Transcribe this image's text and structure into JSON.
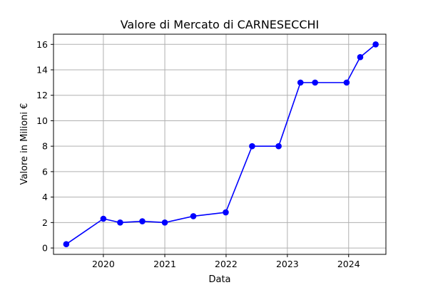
{
  "chart_data": {
    "type": "line",
    "title": "Valore di Mercato di CARNESECCHI",
    "xlabel": "Data",
    "ylabel": "Valore in Milioni €",
    "x_axis": "date",
    "xlim": [
      "2019-03-10",
      "2024-08-10"
    ],
    "ylim": [
      -0.5,
      16.8
    ],
    "x_ticks": [
      {
        "date": "2020-01-01",
        "label": "2020"
      },
      {
        "date": "2021-01-01",
        "label": "2021"
      },
      {
        "date": "2022-01-01",
        "label": "2022"
      },
      {
        "date": "2023-01-01",
        "label": "2023"
      },
      {
        "date": "2024-01-01",
        "label": "2024"
      }
    ],
    "y_ticks": [
      0,
      2,
      4,
      6,
      8,
      10,
      12,
      14,
      16
    ],
    "grid": true,
    "legend": false,
    "series": [
      {
        "color": "#0000ff",
        "marker": "circle",
        "points": [
          {
            "x": "2019-05-25",
            "y": 0.3
          },
          {
            "x": "2020-01-01",
            "y": 2.3
          },
          {
            "x": "2020-04-10",
            "y": 2.0
          },
          {
            "x": "2020-08-20",
            "y": 2.1
          },
          {
            "x": "2021-01-01",
            "y": 2.0
          },
          {
            "x": "2021-06-20",
            "y": 2.5
          },
          {
            "x": "2021-12-30",
            "y": 2.8
          },
          {
            "x": "2022-06-05",
            "y": 8.0
          },
          {
            "x": "2022-11-10",
            "y": 8.0
          },
          {
            "x": "2023-03-20",
            "y": 13.0
          },
          {
            "x": "2023-06-15",
            "y": 13.0
          },
          {
            "x": "2023-12-20",
            "y": 13.0
          },
          {
            "x": "2024-03-10",
            "y": 15.0
          },
          {
            "x": "2024-06-10",
            "y": 16.0
          }
        ]
      }
    ]
  }
}
